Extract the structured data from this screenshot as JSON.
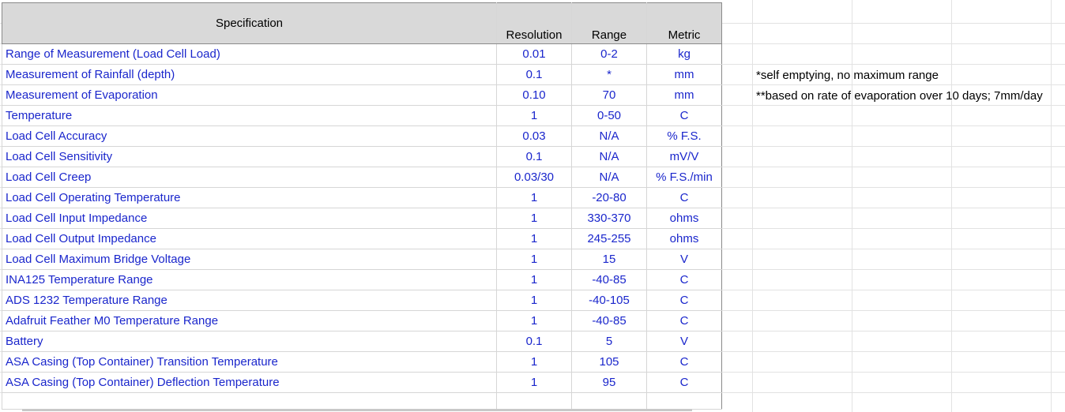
{
  "table": {
    "headers": {
      "specification": "Specification",
      "resolution": "Resolution",
      "range": "Range",
      "metric": "Metric"
    },
    "rows": [
      {
        "spec": "Range of Measurement (Load Cell Load)",
        "resolution": "0.01",
        "range": "0-2",
        "metric": "kg"
      },
      {
        "spec": "Measurement of Rainfall (depth)",
        "resolution": "0.1",
        "range": "*",
        "metric": "mm"
      },
      {
        "spec": "Measurement of Evaporation",
        "resolution": "0.10",
        "range": "70",
        "metric": "mm"
      },
      {
        "spec": "Temperature",
        "resolution": "1",
        "range": "0-50",
        "metric": "C"
      },
      {
        "spec": "Load Cell Accuracy",
        "resolution": "0.03",
        "range": "N/A",
        "metric": "% F.S."
      },
      {
        "spec": "Load Cell Sensitivity",
        "resolution": "0.1",
        "range": "N/A",
        "metric": "mV/V"
      },
      {
        "spec": "Load Cell Creep",
        "resolution": "0.03/30",
        "range": "N/A",
        "metric": "% F.S./min"
      },
      {
        "spec": "Load Cell Operating Temperature",
        "resolution": "1",
        "range": "-20-80",
        "metric": "C"
      },
      {
        "spec": "Load Cell Input Impedance",
        "resolution": "1",
        "range": "330-370",
        "metric": "ohms"
      },
      {
        "spec": "Load Cell Output Impedance",
        "resolution": "1",
        "range": "245-255",
        "metric": "ohms"
      },
      {
        "spec": "Load Cell Maximum Bridge Voltage",
        "resolution": "1",
        "range": "15",
        "metric": "V"
      },
      {
        "spec": "INA125 Temperature Range",
        "resolution": "1",
        "range": "-40-85",
        "metric": "C"
      },
      {
        "spec": "ADS 1232 Temperature Range",
        "resolution": "1",
        "range": "-40-105",
        "metric": "C"
      },
      {
        "spec": "Adafruit Feather M0 Temperature Range",
        "resolution": "1",
        "range": "-40-85",
        "metric": "C"
      },
      {
        "spec": "Battery",
        "resolution": "0.1",
        "range": "5",
        "metric": "V"
      },
      {
        "spec": "ASA Casing (Top Container) Transition Temperature",
        "resolution": "1",
        "range": "105",
        "metric": "C"
      },
      {
        "spec": "ASA Casing (Top Container) Deflection Temperature",
        "resolution": "1",
        "range": "95",
        "metric": "C"
      }
    ]
  },
  "notes": {
    "rainfall": "*self emptying, no maximum range",
    "evaporation": "**based on rate of evaporation over 10 days; 7mm/day"
  },
  "colors": {
    "data_text": "#1a26cc",
    "header_bg": "#d9d9d9",
    "grid": "#e2e2e2"
  }
}
